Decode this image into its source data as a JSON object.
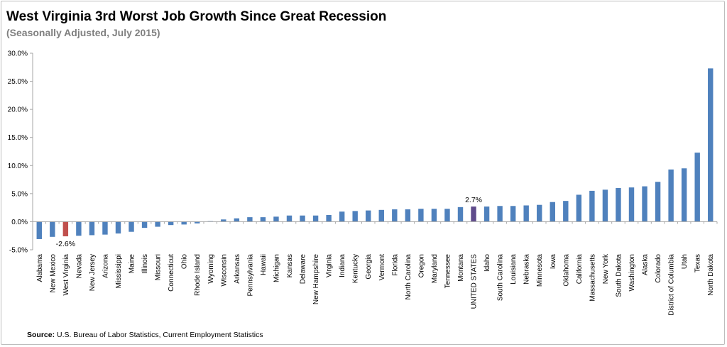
{
  "title": "West Virginia 3rd Worst Job Growth Since Great Recession",
  "subtitle": "(Seasonally Adjusted, July 2015)",
  "source_label": "Source:",
  "source_text": "U.S. Bureau of Labor Statistics, Current Employment Statistics",
  "colors": {
    "default": "#4f81bd",
    "highlight_state": "#c0504d",
    "highlight_us": "#5f4b8b",
    "axis": "#a6a6a6"
  },
  "chart_data": {
    "type": "bar",
    "ylim": [
      -5,
      30
    ],
    "yticks": [
      -5,
      0,
      5,
      10,
      15,
      20,
      25,
      30
    ],
    "ytick_labels": [
      "-5.0%",
      "0.0%",
      "5.0%",
      "10.0%",
      "15.0%",
      "20.0%",
      "25.0%",
      "30.0%"
    ],
    "grid": false,
    "categories": [
      "Alabama",
      "New Mexico",
      "West Virginia",
      "Nevada",
      "New Jersey",
      "Arizona",
      "Mississippi",
      "Maine",
      "Illinois",
      "Missouri",
      "Connecticut",
      "Ohio",
      "Rhode Island",
      "Wyoming",
      "Wisconsin",
      "Arkansas",
      "Pennsylvania",
      "Hawaii",
      "Michigan",
      "Kansas",
      "Delaware",
      "New Hampshire",
      "Virginia",
      "Indiana",
      "Kentucky",
      "Georgia",
      "Vermont",
      "Florida",
      "North Carolina",
      "Oregon",
      "Maryland",
      "Tennessee",
      "Montana",
      "UNITED STATES",
      "Idaho",
      "South Carolina",
      "Louisiana",
      "Nebraska",
      "Minnesota",
      "Iowa",
      "Oklahoma",
      "California",
      "Massachusetts",
      "New York",
      "South Dakota",
      "Washington",
      "Alaska",
      "Colorado",
      "District of Columbia",
      "Utah",
      "Texas",
      "North Dakota"
    ],
    "values": [
      -3.1,
      -2.7,
      -2.6,
      -2.5,
      -2.4,
      -2.3,
      -2.1,
      -1.8,
      -1.1,
      -0.9,
      -0.6,
      -0.5,
      -0.3,
      0.1,
      0.4,
      0.6,
      0.8,
      0.8,
      0.9,
      1.1,
      1.1,
      1.1,
      1.2,
      1.8,
      1.9,
      2.0,
      2.1,
      2.2,
      2.2,
      2.3,
      2.3,
      2.3,
      2.6,
      2.7,
      2.7,
      2.8,
      2.8,
      2.9,
      3.0,
      3.5,
      3.7,
      4.8,
      5.5,
      5.7,
      6.0,
      6.1,
      6.3,
      7.1,
      9.3,
      9.5,
      12.3,
      27.3
    ],
    "highlights": {
      "West Virginia": "highlight_state",
      "UNITED STATES": "highlight_us"
    },
    "data_labels": [
      {
        "category": "West Virginia",
        "text": "-2.6%"
      },
      {
        "category": "UNITED STATES",
        "text": "2.7%"
      }
    ]
  }
}
